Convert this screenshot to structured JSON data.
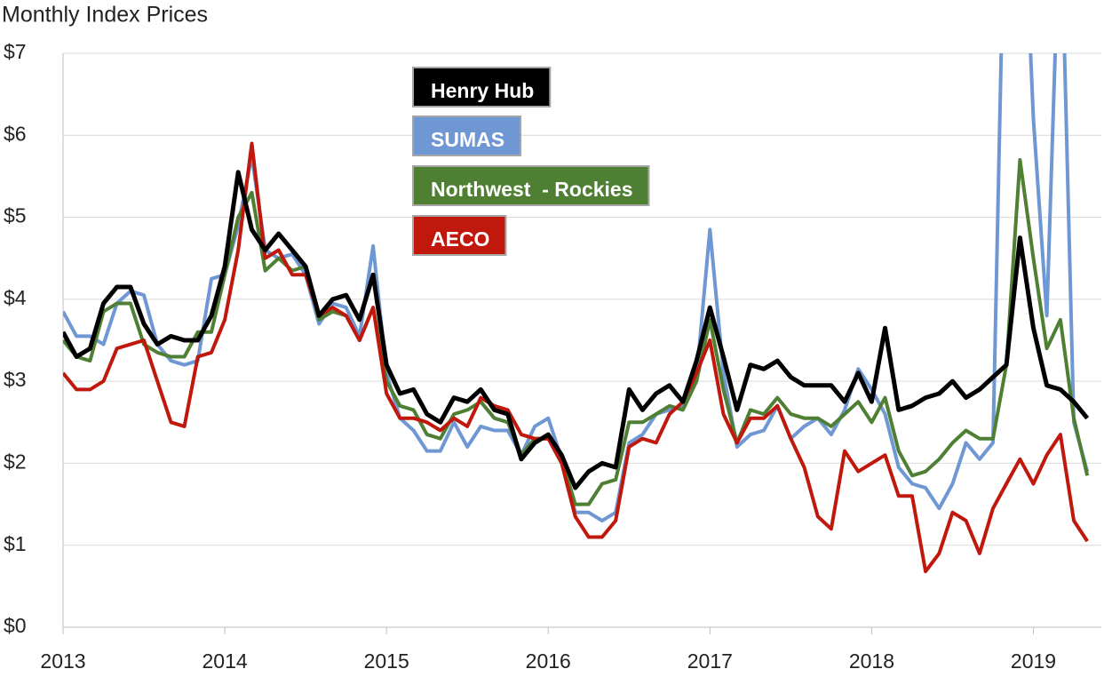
{
  "chart_data": {
    "type": "line",
    "title": "Monthly Index Prices",
    "x": [
      2013,
      2013.083,
      2013.167,
      2013.25,
      2013.333,
      2013.417,
      2013.5,
      2013.583,
      2013.667,
      2013.75,
      2013.833,
      2013.917,
      2014,
      2014.083,
      2014.167,
      2014.25,
      2014.333,
      2014.417,
      2014.5,
      2014.583,
      2014.667,
      2014.75,
      2014.833,
      2014.917,
      2015,
      2015.083,
      2015.167,
      2015.25,
      2015.333,
      2015.417,
      2015.5,
      2015.583,
      2015.667,
      2015.75,
      2015.833,
      2015.917,
      2016,
      2016.083,
      2016.167,
      2016.25,
      2016.333,
      2016.417,
      2016.5,
      2016.583,
      2016.667,
      2016.75,
      2016.833,
      2016.917,
      2017,
      2017.083,
      2017.167,
      2017.25,
      2017.333,
      2017.417,
      2017.5,
      2017.583,
      2017.667,
      2017.75,
      2017.833,
      2017.917,
      2018,
      2018.083,
      2018.167,
      2018.25,
      2018.333,
      2018.417,
      2018.5,
      2018.583,
      2018.667,
      2018.75,
      2018.833,
      2018.917,
      2019,
      2019.083,
      2019.167,
      2019.25,
      2019.333
    ],
    "series": [
      {
        "name": "SUMAS",
        "color": "#6f97d4",
        "values": [
          3.85,
          3.55,
          3.55,
          3.45,
          3.95,
          4.1,
          4.05,
          3.45,
          3.25,
          3.2,
          3.25,
          4.25,
          4.3,
          4.9,
          5.75,
          4.6,
          4.5,
          4.55,
          4.3,
          3.7,
          3.95,
          3.9,
          3.55,
          4.65,
          3.1,
          2.55,
          2.4,
          2.15,
          2.15,
          2.5,
          2.2,
          2.45,
          2.4,
          2.4,
          2.1,
          2.45,
          2.55,
          2.05,
          1.4,
          1.4,
          1.3,
          1.4,
          2.25,
          2.35,
          2.6,
          2.65,
          2.7,
          3.05,
          4.85,
          3.1,
          2.2,
          2.35,
          2.4,
          2.7,
          2.3,
          2.45,
          2.55,
          2.35,
          2.65,
          3.15,
          2.9,
          2.6,
          1.95,
          1.75,
          1.7,
          1.45,
          1.75,
          2.25,
          2.05,
          2.25,
          10,
          10,
          6.2,
          3.8,
          9,
          2.5,
          1.9
        ]
      },
      {
        "name": "Northwest  - Rockies",
        "color": "#4e7f32",
        "values": [
          3.5,
          3.3,
          3.25,
          3.85,
          3.95,
          3.95,
          3.45,
          3.35,
          3.3,
          3.3,
          3.6,
          3.6,
          4.3,
          5.0,
          5.3,
          4.35,
          4.5,
          4.35,
          4.4,
          3.75,
          3.85,
          3.8,
          3.5,
          3.9,
          3.0,
          2.7,
          2.65,
          2.35,
          2.3,
          2.6,
          2.65,
          2.75,
          2.55,
          2.5,
          2.1,
          2.3,
          2.3,
          2.05,
          1.5,
          1.5,
          1.75,
          1.8,
          2.5,
          2.5,
          2.6,
          2.7,
          2.65,
          3.0,
          3.75,
          2.9,
          2.25,
          2.65,
          2.6,
          2.8,
          2.6,
          2.55,
          2.55,
          2.45,
          2.6,
          2.75,
          2.5,
          2.8,
          2.15,
          1.85,
          1.9,
          2.05,
          2.25,
          2.4,
          2.3,
          2.3,
          3.2,
          5.7,
          4.5,
          3.4,
          3.75,
          2.55,
          1.85
        ]
      },
      {
        "name": "AECO",
        "color": "#c0180c",
        "values": [
          3.1,
          2.9,
          2.9,
          3.0,
          3.4,
          3.45,
          3.5,
          3.0,
          2.5,
          2.45,
          3.3,
          3.35,
          3.75,
          4.6,
          5.9,
          4.5,
          4.6,
          4.3,
          4.3,
          3.8,
          3.9,
          3.8,
          3.5,
          3.9,
          2.85,
          2.55,
          2.55,
          2.5,
          2.4,
          2.55,
          2.45,
          2.8,
          2.7,
          2.65,
          2.35,
          2.3,
          2.3,
          2.0,
          1.35,
          1.1,
          1.1,
          1.3,
          2.2,
          2.3,
          2.25,
          2.6,
          2.75,
          3.1,
          3.5,
          2.6,
          2.25,
          2.55,
          2.55,
          2.7,
          2.3,
          1.95,
          1.35,
          1.2,
          2.15,
          1.9,
          2.0,
          2.1,
          1.6,
          1.6,
          0.68,
          0.9,
          1.4,
          1.3,
          0.9,
          1.45,
          1.75,
          2.05,
          1.75,
          2.1,
          2.35,
          1.3,
          1.05
        ]
      },
      {
        "name": "Henry Hub",
        "color": "#000000",
        "values": [
          3.6,
          3.3,
          3.4,
          3.95,
          4.15,
          4.15,
          3.7,
          3.45,
          3.55,
          3.5,
          3.5,
          3.8,
          4.4,
          5.55,
          4.85,
          4.6,
          4.8,
          4.6,
          4.4,
          3.8,
          4.0,
          4.05,
          3.75,
          4.3,
          3.2,
          2.85,
          2.9,
          2.6,
          2.5,
          2.8,
          2.75,
          2.9,
          2.65,
          2.6,
          2.05,
          2.25,
          2.35,
          2.1,
          1.7,
          1.9,
          2.0,
          1.95,
          2.9,
          2.65,
          2.85,
          2.95,
          2.75,
          3.25,
          3.9,
          3.3,
          2.65,
          3.2,
          3.15,
          3.25,
          3.05,
          2.95,
          2.95,
          2.95,
          2.75,
          3.1,
          2.75,
          3.65,
          2.65,
          2.7,
          2.8,
          2.85,
          3.0,
          2.8,
          2.9,
          3.05,
          3.2,
          4.75,
          3.65,
          2.95,
          2.9,
          2.75,
          2.55
        ]
      }
    ],
    "legend_order": [
      "Henry Hub",
      "SUMAS",
      "Northwest  - Rockies",
      "AECO"
    ],
    "xlim": [
      2013,
      2019.42
    ],
    "xticks": [
      2013,
      2014,
      2015,
      2016,
      2017,
      2018,
      2019
    ],
    "ylim": [
      0,
      7
    ],
    "yticks": [
      {
        "value": 0,
        "label": "$0"
      },
      {
        "value": 1,
        "label": "$1"
      },
      {
        "value": 2,
        "label": "$2"
      },
      {
        "value": 3,
        "label": "$3"
      },
      {
        "value": 4,
        "label": "$4"
      },
      {
        "value": 5,
        "label": "$5"
      },
      {
        "value": 6,
        "label": "$6"
      },
      {
        "value": 7,
        "label": "$7"
      }
    ],
    "grid": true
  }
}
